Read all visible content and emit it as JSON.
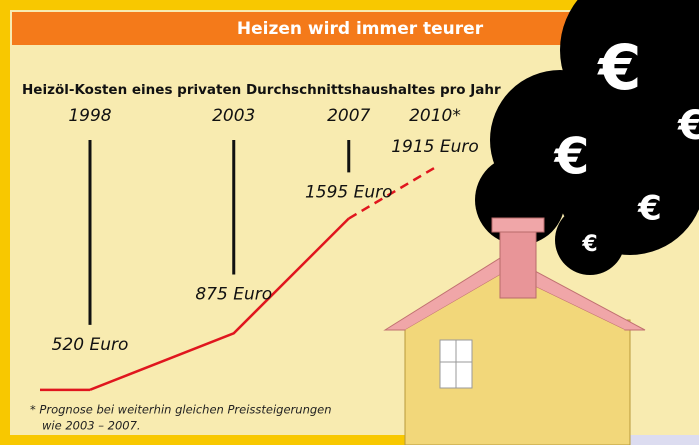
{
  "chart_data": {
    "type": "line",
    "title": "Heizen wird immer teurer",
    "subtitle": "Heizöl-Kosten eines privaten Durchschnittshaushaltes pro Jahr",
    "x": [
      1998,
      2003,
      2007,
      2010
    ],
    "xlim": [
      1998,
      2010
    ],
    "xticks": [
      1998,
      2003,
      2007,
      {
        "value": 2010,
        "label": "2010*"
      }
    ],
    "ylim": [
      500,
      2000
    ],
    "series": [
      {
        "name": "Heizöl-Kosten",
        "color": "#e0161e",
        "values": [
          520,
          875,
          1595,
          1915
        ],
        "value_labels": [
          "520 Euro",
          "875 Euro",
          "1595 Euro",
          "1915 Euro"
        ],
        "forecast": [
          false,
          false,
          false,
          true
        ]
      }
    ],
    "footnote": [
      "* Prognose bei weiterhin gleichen Preissteigerungen",
      "wie 2003 – 2007."
    ],
    "smoke_symbols": [
      "€",
      "€",
      "€",
      "€",
      "€"
    ]
  }
}
